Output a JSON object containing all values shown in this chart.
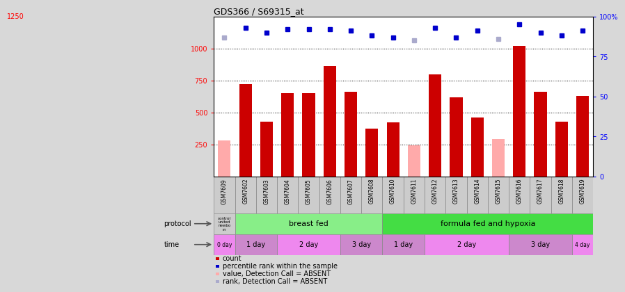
{
  "title": "GDS366 / S69315_at",
  "samples": [
    "GSM7609",
    "GSM7602",
    "GSM7603",
    "GSM7604",
    "GSM7605",
    "GSM7606",
    "GSM7607",
    "GSM7608",
    "GSM7610",
    "GSM7611",
    "GSM7612",
    "GSM7613",
    "GSM7614",
    "GSM7615",
    "GSM7616",
    "GSM7617",
    "GSM7618",
    "GSM7619"
  ],
  "counts": [
    280,
    720,
    430,
    650,
    650,
    860,
    660,
    375,
    420,
    245,
    800,
    620,
    460,
    290,
    1020,
    660,
    430,
    630
  ],
  "absent_mask": [
    true,
    false,
    false,
    false,
    false,
    false,
    false,
    false,
    false,
    true,
    false,
    false,
    false,
    true,
    false,
    false,
    false,
    false
  ],
  "percentile_ranks": [
    87,
    93,
    90,
    92,
    92,
    92,
    91,
    88,
    87,
    85,
    93,
    87,
    91,
    86,
    95,
    90,
    88,
    91
  ],
  "rank_absent_mask": [
    true,
    false,
    false,
    false,
    false,
    false,
    false,
    false,
    false,
    true,
    false,
    false,
    false,
    true,
    false,
    false,
    false,
    false
  ],
  "ylim_left": [
    0,
    1250
  ],
  "ylim_right": [
    0,
    100
  ],
  "yticks_left": [
    250,
    500,
    750,
    1000
  ],
  "yticks_right": [
    0,
    25,
    50,
    75,
    100
  ],
  "bar_color_present": "#cc0000",
  "bar_color_absent": "#ffaaaa",
  "rank_color_present": "#0000cc",
  "rank_color_absent": "#aaaacc",
  "background_color": "#d8d8d8",
  "plot_bg": "#ffffff",
  "control_color": "#cccccc",
  "breast_fed_color": "#88ee88",
  "formula_color": "#44dd44",
  "time_colors": [
    "#ee88ee",
    "#cc88cc",
    "#ee88ee",
    "#cc88cc",
    "#cc88cc",
    "#ee88ee",
    "#cc88cc",
    "#ee88ee"
  ],
  "time_labels": [
    "0 day",
    "1 day",
    "2 day",
    "3 day",
    "1 day",
    "2 day",
    "3 day",
    "4 day"
  ],
  "time_starts": [
    0,
    1,
    3,
    6,
    8,
    10,
    14,
    17
  ],
  "time_ends": [
    1,
    3,
    6,
    8,
    10,
    14,
    17,
    18
  ],
  "legend_items": [
    {
      "label": "count",
      "color": "#cc0000"
    },
    {
      "label": "percentile rank within the sample",
      "color": "#0000cc"
    },
    {
      "label": "value, Detection Call = ABSENT",
      "color": "#ffaaaa"
    },
    {
      "label": "rank, Detection Call = ABSENT",
      "color": "#aaaacc"
    }
  ]
}
